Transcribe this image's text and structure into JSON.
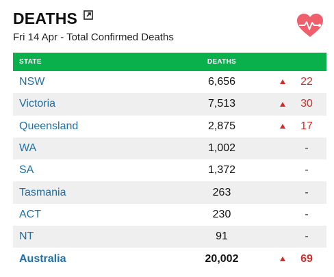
{
  "header": {
    "title": "DEATHS",
    "subtitle": "Fri 14 Apr - Total Confirmed Deaths"
  },
  "colors": {
    "header_bar": "#0ab04b",
    "state_link": "#1f6fa8",
    "increase": "#d42a2a",
    "heart": "#ef5f6c"
  },
  "table": {
    "columns": {
      "state": "STATE",
      "deaths": "DEATHS",
      "change": ""
    },
    "rows": [
      {
        "state": "NSW",
        "deaths": "6,656",
        "change": "22",
        "up": true
      },
      {
        "state": "Victoria",
        "deaths": "7,513",
        "change": "30",
        "up": true
      },
      {
        "state": "Queensland",
        "deaths": "2,875",
        "change": "17",
        "up": true
      },
      {
        "state": "WA",
        "deaths": "1,002",
        "change": "-",
        "up": false
      },
      {
        "state": "SA",
        "deaths": "1,372",
        "change": "-",
        "up": false
      },
      {
        "state": "Tasmania",
        "deaths": "263",
        "change": "-",
        "up": false
      },
      {
        "state": "ACT",
        "deaths": "230",
        "change": "-",
        "up": false
      },
      {
        "state": "NT",
        "deaths": "91",
        "change": "-",
        "up": false
      }
    ],
    "total": {
      "state": "Australia",
      "deaths": "20,002",
      "change": "69",
      "up": true
    }
  },
  "icons": {
    "external": "external-link-icon",
    "heart": "heart-pulse-icon",
    "arrow": "up-arrow-icon"
  }
}
